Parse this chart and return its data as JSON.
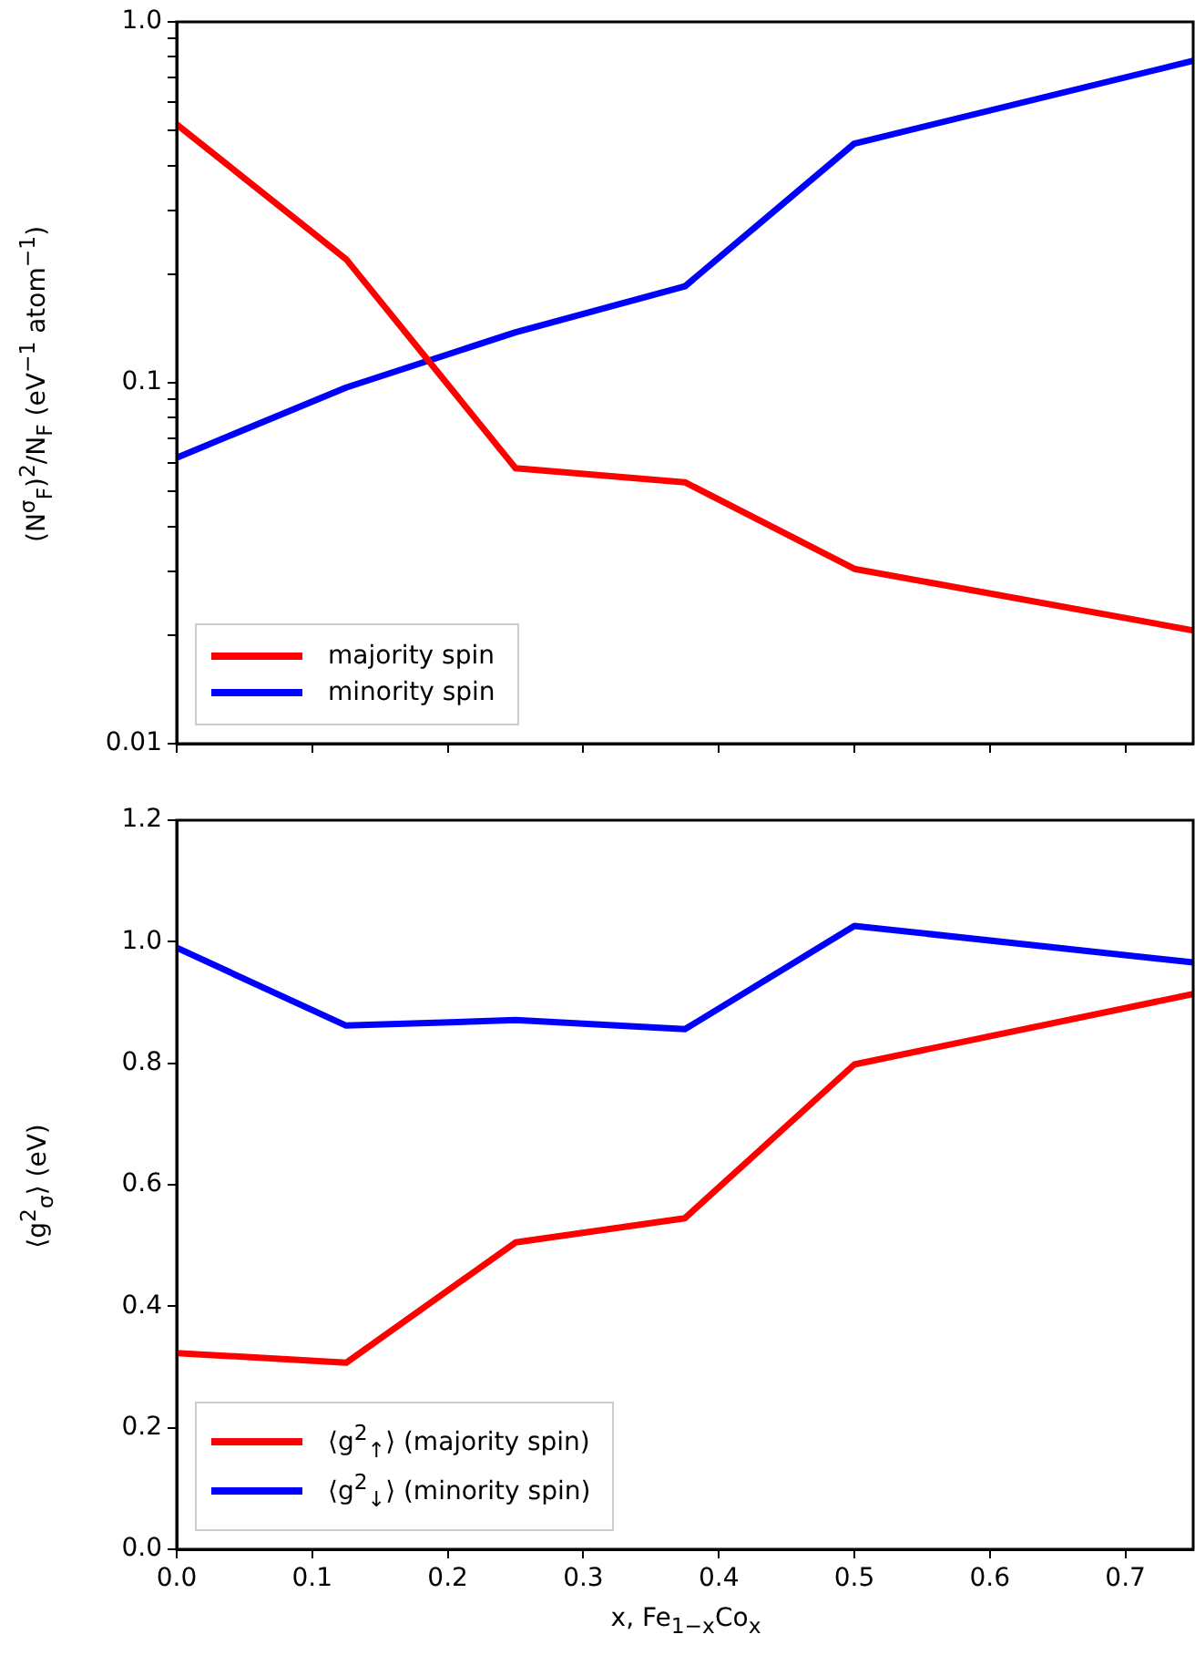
{
  "chart_data": [
    {
      "type": "line",
      "ylabel": "(N$^{σ}$$_{F}$)$^{2}$/N$_{F}$ (eV$^{−1}$ atom$^{−1}$)",
      "x": [
        0,
        0.125,
        0.25,
        0.375,
        0.5,
        0.75
      ],
      "series": [
        {
          "name": "majority spin",
          "color": "#ff0000",
          "values": [
            0.52,
            0.22,
            0.058,
            0.053,
            0.0305,
            0.0206
          ]
        },
        {
          "name": "minority spin",
          "color": "#0000ff",
          "values": [
            0.062,
            0.097,
            0.138,
            0.185,
            0.46,
            0.78
          ]
        }
      ],
      "log": "y",
      "xlim": [
        0,
        0.75
      ],
      "xticks": [
        {
          "value": 0,
          "label": null
        },
        {
          "value": 0.1,
          "label": null
        },
        {
          "value": 0.2,
          "label": null
        },
        {
          "value": 0.3,
          "label": null
        },
        {
          "value": 0.4,
          "label": null
        },
        {
          "value": 0.5,
          "label": null
        },
        {
          "value": 0.6,
          "label": null
        },
        {
          "value": 0.7,
          "label": null
        }
      ],
      "ylim": [
        0.01,
        1
      ],
      "yticks": [
        {
          "value": 0.01,
          "label": "0.01"
        },
        {
          "value": 0.02,
          "label": null
        },
        {
          "value": 0.03,
          "label": null
        },
        {
          "value": 0.04,
          "label": null
        },
        {
          "value": 0.05,
          "label": null
        },
        {
          "value": 0.06,
          "label": null
        },
        {
          "value": 0.07,
          "label": null
        },
        {
          "value": 0.08,
          "label": null
        },
        {
          "value": 0.09,
          "label": null
        },
        {
          "value": 0.1,
          "label": "0.1"
        },
        {
          "value": 0.2,
          "label": null
        },
        {
          "value": 0.3,
          "label": null
        },
        {
          "value": 0.4,
          "label": null
        },
        {
          "value": 0.5,
          "label": null
        },
        {
          "value": 0.6,
          "label": null
        },
        {
          "value": 0.7,
          "label": null
        },
        {
          "value": 0.8,
          "label": null
        },
        {
          "value": 0.9,
          "label": null
        },
        {
          "value": 1,
          "label": "1.0"
        }
      ],
      "tick_labels": "y",
      "legend": "bottom left",
      "marker": "none",
      "line_style": "solid",
      "grid": false
    },
    {
      "type": "line",
      "xlabel": "x, Fe$_{1−x}$Co$_{x}$",
      "ylabel": "⟨g$^{2}$$_{σ}$⟩ (eV)",
      "x": [
        0,
        0.125,
        0.25,
        0.375,
        0.5,
        0.75
      ],
      "series": [
        {
          "name": "⟨g$^{2}$$_{↑}$⟩ (majority spin)",
          "color": "#ff0000",
          "values": [
            0.323,
            0.307,
            0.505,
            0.545,
            0.798,
            0.914
          ]
        },
        {
          "name": "⟨g$^{2}$$_{↓}$⟩ (minority spin)",
          "color": "#0000ff",
          "values": [
            0.99,
            0.862,
            0.871,
            0.856,
            1.026,
            0.966
          ]
        }
      ],
      "xlim": [
        0,
        0.75
      ],
      "xticks": [
        {
          "value": 0,
          "label": "0.0"
        },
        {
          "value": 0.1,
          "label": "0.1"
        },
        {
          "value": 0.2,
          "label": "0.2"
        },
        {
          "value": 0.3,
          "label": "0.3"
        },
        {
          "value": 0.4,
          "label": "0.4"
        },
        {
          "value": 0.5,
          "label": "0.5"
        },
        {
          "value": 0.6,
          "label": "0.6"
        },
        {
          "value": 0.7,
          "label": "0.7"
        }
      ],
      "ylim": [
        0,
        1.2
      ],
      "yticks": [
        {
          "value": 0,
          "label": "0.0"
        },
        {
          "value": 0.2,
          "label": "0.2"
        },
        {
          "value": 0.4,
          "label": "0.4"
        },
        {
          "value": 0.6,
          "label": "0.6"
        },
        {
          "value": 0.8,
          "label": "0.8"
        },
        {
          "value": 1.0,
          "label": "1.0"
        },
        {
          "value": 1.2,
          "label": "1.2"
        }
      ],
      "legend": "bottom left",
      "marker": "none",
      "line_style": "solid",
      "grid": false
    }
  ]
}
